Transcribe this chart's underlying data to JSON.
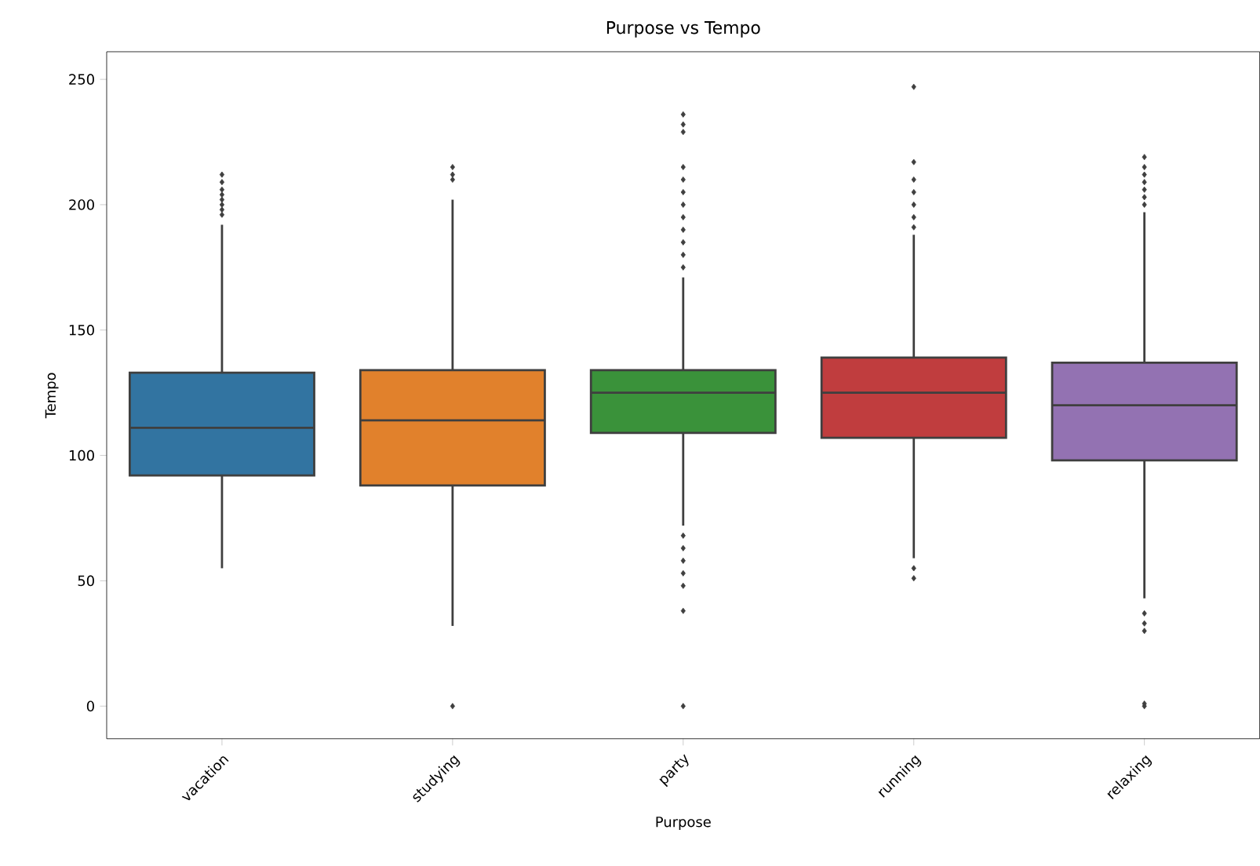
{
  "chart_data": {
    "type": "box",
    "title": "Purpose vs Tempo",
    "xlabel": "Purpose",
    "ylabel": "Tempo",
    "categories": [
      "vacation",
      "studying",
      "party",
      "running",
      "relaxing"
    ],
    "colors": [
      "#3274a1",
      "#e1812c",
      "#3a923a",
      "#c03d3e",
      "#9372b2"
    ],
    "boxes": [
      {
        "low": 55,
        "q1": 92,
        "median": 111,
        "q3": 133,
        "high": 192,
        "outliers": [
          196,
          198,
          200,
          202,
          204,
          206,
          209,
          212
        ]
      },
      {
        "low": 32,
        "q1": 88,
        "median": 114,
        "q3": 134,
        "high": 202,
        "outliers": [
          0,
          210,
          212,
          215
        ]
      },
      {
        "low": 72,
        "q1": 109,
        "median": 125,
        "q3": 134,
        "high": 171,
        "outliers": [
          0,
          38,
          48,
          53,
          58,
          63,
          68,
          175,
          180,
          185,
          190,
          195,
          200,
          205,
          210,
          215,
          229,
          232,
          236
        ]
      },
      {
        "low": 59,
        "q1": 107,
        "median": 125,
        "q3": 139,
        "high": 188,
        "outliers": [
          51,
          55,
          191,
          195,
          200,
          205,
          210,
          217,
          247
        ]
      },
      {
        "low": 43,
        "q1": 98,
        "median": 120,
        "q3": 137,
        "high": 197,
        "outliers": [
          0,
          1,
          30,
          33,
          37,
          200,
          203,
          206,
          209,
          212,
          215,
          219
        ]
      }
    ],
    "ylim": [
      -13,
      261
    ],
    "yticks": [
      0,
      50,
      100,
      150,
      200,
      250
    ]
  }
}
